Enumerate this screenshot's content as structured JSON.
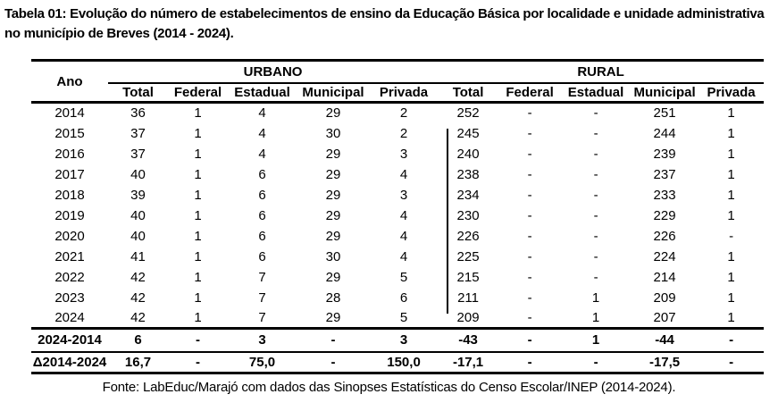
{
  "title": "Tabela 01: Evolução do número de estabelecimentos de ensino da Educação Básica por localidade e unidade administrativa no município de Breves (2014 - 2024).",
  "table": {
    "col_ano": "Ano",
    "groups": [
      {
        "label": "URBANO"
      },
      {
        "label": "RURAL"
      }
    ],
    "sub_headers": [
      "Total",
      "Federal",
      "Estadual",
      "Municipal",
      "Privada",
      "Total",
      "Federal",
      "Estadual",
      "Municipal",
      "Privada"
    ],
    "rows": [
      {
        "ano": "2014",
        "values": [
          "36",
          "1",
          "4",
          "29",
          "2",
          "252",
          "-",
          "-",
          "251",
          "1"
        ]
      },
      {
        "ano": "2015",
        "values": [
          "37",
          "1",
          "4",
          "30",
          "2",
          "245",
          "-",
          "-",
          "244",
          "1"
        ]
      },
      {
        "ano": "2016",
        "values": [
          "37",
          "1",
          "4",
          "29",
          "3",
          "240",
          "-",
          "-",
          "239",
          "1"
        ]
      },
      {
        "ano": "2017",
        "values": [
          "40",
          "1",
          "6",
          "29",
          "4",
          "238",
          "-",
          "-",
          "237",
          "1"
        ]
      },
      {
        "ano": "2018",
        "values": [
          "39",
          "1",
          "6",
          "29",
          "3",
          "234",
          "-",
          "-",
          "233",
          "1"
        ]
      },
      {
        "ano": "2019",
        "values": [
          "40",
          "1",
          "6",
          "29",
          "4",
          "230",
          "-",
          "-",
          "229",
          "1"
        ]
      },
      {
        "ano": "2020",
        "values": [
          "40",
          "1",
          "6",
          "29",
          "4",
          "226",
          "-",
          "-",
          "226",
          "-"
        ]
      },
      {
        "ano": "2021",
        "values": [
          "41",
          "1",
          "6",
          "30",
          "4",
          "225",
          "-",
          "-",
          "224",
          "1"
        ]
      },
      {
        "ano": "2022",
        "values": [
          "42",
          "1",
          "7",
          "29",
          "5",
          "215",
          "-",
          "-",
          "214",
          "1"
        ]
      },
      {
        "ano": "2023",
        "values": [
          "42",
          "1",
          "7",
          "28",
          "6",
          "211",
          "-",
          "1",
          "209",
          "1"
        ]
      },
      {
        "ano": "2024",
        "values": [
          "42",
          "1",
          "7",
          "29",
          "5",
          "209",
          "-",
          "1",
          "207",
          "1"
        ]
      }
    ],
    "summary_rows": [
      {
        "label": "2024-2014",
        "values": [
          "6",
          "-",
          "3",
          "-",
          "3",
          "-43",
          "-",
          "1",
          "-44",
          "-"
        ]
      },
      {
        "label": "Δ2014-2024",
        "values": [
          "16,7",
          "-",
          "75,0",
          "-",
          "150,0",
          "-17,1",
          "-",
          "-",
          "-17,5",
          "-"
        ]
      }
    ]
  },
  "source": "Fonte: LabEduc/Marajó com dados das Sinopses Estatísticas do Censo Escolar/INEP (2014-2024)."
}
